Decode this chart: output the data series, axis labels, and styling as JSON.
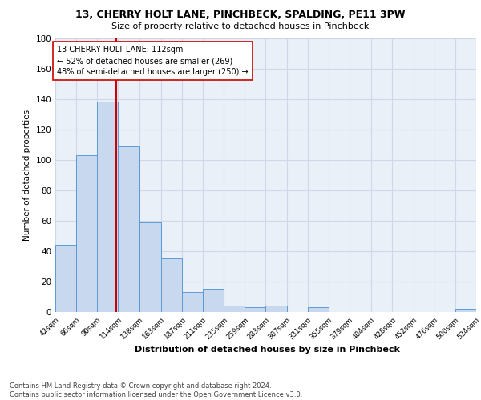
{
  "title1": "13, CHERRY HOLT LANE, PINCHBECK, SPALDING, PE11 3PW",
  "title2": "Size of property relative to detached houses in Pinchbeck",
  "xlabel": "Distribution of detached houses by size in Pinchbeck",
  "ylabel": "Number of detached properties",
  "bin_edges": [
    42,
    66,
    90,
    114,
    138,
    163,
    187,
    211,
    235,
    259,
    283,
    307,
    331,
    355,
    379,
    404,
    428,
    452,
    476,
    500,
    524
  ],
  "bin_labels": [
    "42sqm",
    "66sqm",
    "90sqm",
    "114sqm",
    "138sqm",
    "163sqm",
    "187sqm",
    "211sqm",
    "235sqm",
    "259sqm",
    "283sqm",
    "307sqm",
    "331sqm",
    "355sqm",
    "379sqm",
    "404sqm",
    "428sqm",
    "452sqm",
    "476sqm",
    "500sqm",
    "524sqm"
  ],
  "counts": [
    44,
    103,
    138,
    109,
    59,
    35,
    13,
    15,
    4,
    3,
    4,
    0,
    3,
    0,
    0,
    0,
    0,
    0,
    0,
    2
  ],
  "bar_color": "#c8d9ef",
  "bar_edge_color": "#5b9bd5",
  "vline_x": 112,
  "vline_color": "#cc0000",
  "annotation_line1": "13 CHERRY HOLT LANE: 112sqm",
  "annotation_line2": "← 52% of detached houses are smaller (269)",
  "annotation_line3": "48% of semi-detached houses are larger (250) →",
  "annotation_box_color": "#ffffff",
  "annotation_box_edge": "#cc0000",
  "ylim": [
    0,
    180
  ],
  "yticks": [
    0,
    20,
    40,
    60,
    80,
    100,
    120,
    140,
    160,
    180
  ],
  "grid_color": "#d0d8e8",
  "footer_text": "Contains HM Land Registry data © Crown copyright and database right 2024.\nContains public sector information licensed under the Open Government Licence v3.0.",
  "background_color": "#eaf0f8"
}
